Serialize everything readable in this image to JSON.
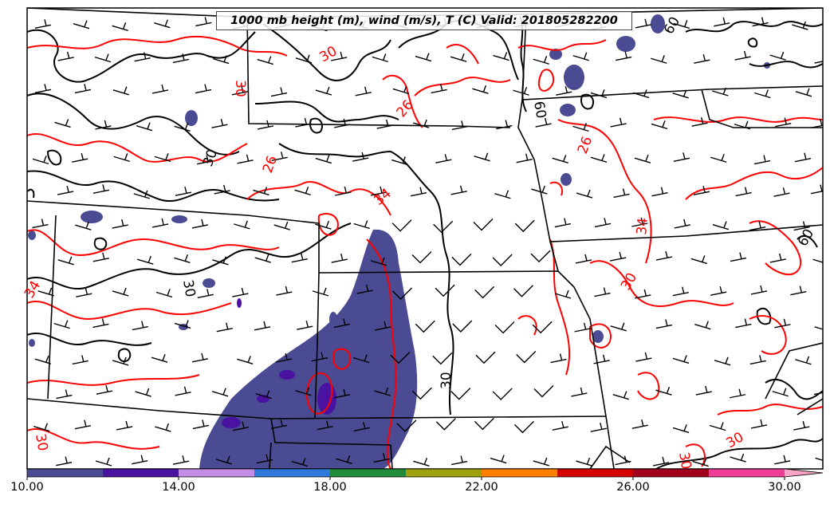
{
  "title": "1000 mb height (m), wind (m/s), T (C) Valid: 201805282200",
  "colorbar": {
    "colors": [
      "#4a4b93",
      "#4a12a0",
      "#c38de6",
      "#2f79d8",
      "#228b3b",
      "#9ea00d",
      "#ff7f00",
      "#d40000",
      "#a2001c",
      "#ee3d96"
    ],
    "extend_color": "#f9a3c6",
    "tick_labels": [
      "10.00",
      "14.00",
      "18.00",
      "22.00",
      "26.00",
      "30.00"
    ]
  },
  "contour_labels": [
    {
      "text": "30",
      "color": "red"
    },
    {
      "text": "30",
      "color": "red"
    },
    {
      "text": "26",
      "color": "red"
    },
    {
      "text": "26",
      "color": "red"
    },
    {
      "text": "34",
      "color": "red"
    },
    {
      "text": "26",
      "color": "red"
    },
    {
      "text": "34",
      "color": "red"
    },
    {
      "text": "30",
      "color": "red"
    },
    {
      "text": "34",
      "color": "red"
    },
    {
      "text": "30",
      "color": "red"
    },
    {
      "text": "30",
      "color": "red"
    },
    {
      "text": "30",
      "color": "red"
    },
    {
      "text": "30",
      "color": "black"
    },
    {
      "text": "30",
      "color": "black"
    },
    {
      "text": "30",
      "color": "black"
    },
    {
      "text": "60",
      "color": "black"
    },
    {
      "text": "60",
      "color": "black"
    },
    {
      "text": "60",
      "color": "black"
    }
  ],
  "colors": {
    "temperature_contour": "#ff0000",
    "height_contour": "#000000",
    "boundary": "#000000"
  }
}
